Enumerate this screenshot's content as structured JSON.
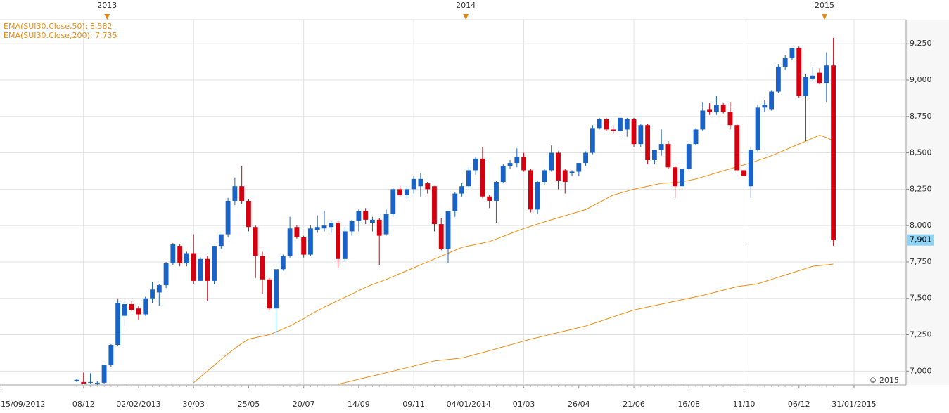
{
  "chart_data": {
    "type": "candlestick",
    "up_color": "#1a63c6",
    "down_color": "#d40010",
    "grid": true,
    "xlim": [
      "2012-09-14",
      "2015-03-25"
    ],
    "ylim": [
      6905,
      9415
    ],
    "yticks": [
      {
        "value": 7000,
        "label": "7,000"
      },
      {
        "value": 7250,
        "label": "7,250"
      },
      {
        "value": 7500,
        "label": "7,500"
      },
      {
        "value": 7750,
        "label": "7,750"
      },
      {
        "value": 8000,
        "label": "8,000"
      },
      {
        "value": 8250,
        "label": "8,250"
      },
      {
        "value": 8500,
        "label": "8,500"
      },
      {
        "value": 8750,
        "label": "8,750"
      },
      {
        "value": 9000,
        "label": "9,000"
      },
      {
        "value": 9250,
        "label": "9,250"
      }
    ],
    "xticks": [
      {
        "value": "2012-09-15",
        "label": "15/09/2012"
      },
      {
        "value": "2012-12-08",
        "label": "08/12"
      },
      {
        "value": "2013-02-02",
        "label": "02/02/2013"
      },
      {
        "value": "2013-03-30",
        "label": "30/03"
      },
      {
        "value": "2013-05-25",
        "label": "25/05"
      },
      {
        "value": "2013-07-20",
        "label": "20/07"
      },
      {
        "value": "2013-09-14",
        "label": "14/09"
      },
      {
        "value": "2013-11-09",
        "label": "09/11"
      },
      {
        "value": "2014-01-04",
        "label": "04/01/2014"
      },
      {
        "value": "2014-03-01",
        "label": "01/03"
      },
      {
        "value": "2014-04-26",
        "label": "26/04"
      },
      {
        "value": "2014-06-21",
        "label": "21/06"
      },
      {
        "value": "2014-08-16",
        "label": "16/08"
      },
      {
        "value": "2014-10-11",
        "label": "11/10"
      },
      {
        "value": "2014-12-06",
        "label": "06/12"
      },
      {
        "value": "2015-01-31",
        "label": "31/01/2015"
      }
    ],
    "year_ticks": [
      {
        "value": "2013-01-01",
        "label": "2013"
      },
      {
        "value": "2014-01-01",
        "label": "2014"
      },
      {
        "value": "2015-01-01",
        "label": "2015"
      }
    ],
    "last_value_label": "7,901",
    "copyright": "© 2015",
    "x": [
      "2012-12-01",
      "2012-12-08",
      "2012-12-15",
      "2012-12-22",
      "2012-12-29",
      "2013-01-05",
      "2013-01-12",
      "2013-01-19",
      "2013-01-26",
      "2013-02-02",
      "2013-02-09",
      "2013-02-16",
      "2013-02-23",
      "2013-03-02",
      "2013-03-09",
      "2013-03-16",
      "2013-03-23",
      "2013-03-30",
      "2013-04-06",
      "2013-04-13",
      "2013-04-20",
      "2013-04-27",
      "2013-05-04",
      "2013-05-11",
      "2013-05-18",
      "2013-05-25",
      "2013-06-01",
      "2013-06-08",
      "2013-06-15",
      "2013-06-22",
      "2013-06-29",
      "2013-07-06",
      "2013-07-13",
      "2013-07-20",
      "2013-07-27",
      "2013-08-03",
      "2013-08-10",
      "2013-08-17",
      "2013-08-24",
      "2013-08-31",
      "2013-09-07",
      "2013-09-14",
      "2013-09-21",
      "2013-09-28",
      "2013-10-05",
      "2013-10-12",
      "2013-10-19",
      "2013-10-26",
      "2013-11-02",
      "2013-11-09",
      "2013-11-16",
      "2013-11-23",
      "2013-11-30",
      "2013-12-07",
      "2013-12-14",
      "2013-12-21",
      "2013-12-28",
      "2014-01-04",
      "2014-01-11",
      "2014-01-18",
      "2014-01-25",
      "2014-02-01",
      "2014-02-08",
      "2014-02-15",
      "2014-02-22",
      "2014-03-01",
      "2014-03-08",
      "2014-03-15",
      "2014-03-22",
      "2014-03-29",
      "2014-04-05",
      "2014-04-12",
      "2014-04-19",
      "2014-04-26",
      "2014-05-03",
      "2014-05-10",
      "2014-05-17",
      "2014-05-24",
      "2014-05-31",
      "2014-06-07",
      "2014-06-14",
      "2014-06-21",
      "2014-06-28",
      "2014-07-05",
      "2014-07-12",
      "2014-07-19",
      "2014-07-26",
      "2014-08-02",
      "2014-08-09",
      "2014-08-16",
      "2014-08-23",
      "2014-08-30",
      "2014-09-06",
      "2014-09-13",
      "2014-09-20",
      "2014-09-27",
      "2014-10-04",
      "2014-10-11",
      "2014-10-18",
      "2014-10-25",
      "2014-11-01",
      "2014-11-08",
      "2014-11-15",
      "2014-11-22",
      "2014-11-29",
      "2014-12-06",
      "2014-12-13",
      "2014-12-20",
      "2014-12-27",
      "2015-01-03",
      "2015-01-10"
    ],
    "open": [
      6930,
      6925,
      6920,
      6915,
      6920,
      7040,
      7180,
      7380,
      7460,
      7430,
      7390,
      7500,
      7540,
      7590,
      7740,
      7860,
      7740,
      7810,
      7620,
      7770,
      7620,
      7860,
      7940,
      8170,
      8270,
      8170,
      7990,
      7790,
      7630,
      7430,
      7700,
      7790,
      7990,
      7920,
      7800,
      7970,
      7980,
      7990,
      8020,
      7770,
      7960,
      8030,
      8100,
      8020,
      8040,
      7940,
      8080,
      8250,
      8210,
      8250,
      8270,
      8290,
      8270,
      8010,
      7840,
      8100,
      8220,
      8270,
      8380,
      8460,
      8200,
      8170,
      8300,
      8410,
      8430,
      8470,
      8380,
      8110,
      8300,
      8380,
      8500,
      8380,
      8360,
      8370,
      8430,
      8500,
      8670,
      8730,
      8660,
      8650,
      8660,
      8730,
      8560,
      8690,
      8450,
      8520,
      8560,
      8400,
      8270,
      8390,
      8560,
      8660,
      8800,
      8780,
      8830,
      8780,
      8690,
      8380,
      8270,
      8520,
      8810,
      8800,
      8920,
      9090,
      9150,
      9220,
      8890,
      9010,
      9050,
      8980,
      9100
    ],
    "high": [
      6945,
      6990,
      6985,
      6930,
      7045,
      7185,
      7500,
      7490,
      7480,
      7450,
      7510,
      7610,
      7600,
      7750,
      7880,
      7870,
      7820,
      7940,
      7780,
      7790,
      7860,
      7940,
      8190,
      8330,
      8410,
      8180,
      8000,
      7820,
      7640,
      7700,
      7800,
      8060,
      8000,
      7930,
      8000,
      8070,
      8100,
      8030,
      8030,
      7990,
      8040,
      8110,
      8120,
      8060,
      8050,
      8110,
      8260,
      8270,
      8270,
      8340,
      8360,
      8300,
      8270,
      8050,
      8100,
      8230,
      8290,
      8400,
      8470,
      8540,
      8210,
      8310,
      8420,
      8450,
      8530,
      8500,
      8390,
      8310,
      8390,
      8550,
      8510,
      8390,
      8380,
      8430,
      8510,
      8690,
      8740,
      8740,
      8690,
      8760,
      8740,
      8740,
      8700,
      8700,
      8520,
      8660,
      8580,
      8410,
      8400,
      8570,
      8670,
      8850,
      8840,
      8890,
      8840,
      8850,
      8700,
      8400,
      8540,
      8830,
      8860,
      8930,
      9110,
      9170,
      9220,
      9230,
      9040,
      9090,
      9080,
      9190,
      9290
    ],
    "low": [
      6925,
      6910,
      6910,
      6905,
      6910,
      7030,
      7170,
      7300,
      7410,
      7350,
      7380,
      7470,
      7450,
      7570,
      7730,
      7720,
      7720,
      7600,
      7620,
      7480,
      7600,
      7840,
      7920,
      8140,
      8150,
      7960,
      7640,
      7530,
      7420,
      7250,
      7690,
      7780,
      7910,
      7780,
      7790,
      7950,
      7960,
      7950,
      7710,
      7760,
      7930,
      7960,
      8010,
      7960,
      7730,
      7930,
      8070,
      8200,
      8180,
      8220,
      8200,
      8220,
      7960,
      7830,
      7740,
      8060,
      8200,
      8260,
      8350,
      8190,
      8120,
      8020,
      8290,
      8390,
      8400,
      8370,
      8090,
      8080,
      8280,
      8370,
      8250,
      8220,
      8340,
      8340,
      8410,
      8490,
      8660,
      8650,
      8630,
      8620,
      8610,
      8540,
      8540,
      8420,
      8420,
      8480,
      8390,
      8190,
      8260,
      8380,
      8550,
      8650,
      8760,
      8760,
      8770,
      8660,
      8370,
      7870,
      8190,
      8510,
      8780,
      8790,
      8910,
      9070,
      9140,
      8880,
      8580,
      8990,
      8970,
      8850,
      7860
    ],
    "close": [
      6940,
      6915,
      6925,
      6920,
      7040,
      7180,
      7470,
      7460,
      7420,
      7390,
      7500,
      7560,
      7590,
      7740,
      7870,
      7740,
      7810,
      7620,
      7770,
      7620,
      7860,
      7940,
      8170,
      8270,
      8170,
      7990,
      7790,
      7630,
      7430,
      7700,
      7790,
      7980,
      7920,
      7800,
      7980,
      7990,
      8000,
      8020,
      7770,
      7960,
      8030,
      8100,
      8040,
      8040,
      7930,
      8080,
      8250,
      8210,
      8250,
      8320,
      8320,
      8250,
      8010,
      7840,
      8100,
      8220,
      8270,
      8380,
      8460,
      8200,
      8170,
      8300,
      8410,
      8430,
      8470,
      8380,
      8110,
      8300,
      8380,
      8500,
      8310,
      8300,
      8370,
      8430,
      8500,
      8670,
      8730,
      8660,
      8650,
      8740,
      8730,
      8560,
      8690,
      8450,
      8520,
      8560,
      8400,
      8270,
      8390,
      8560,
      8660,
      8790,
      8780,
      8830,
      8780,
      8690,
      8380,
      8340,
      8520,
      8810,
      8830,
      8920,
      9090,
      9150,
      9220,
      8890,
      9020,
      9030,
      8980,
      9100,
      7901
    ],
    "series": [
      {
        "name": "EMA(SUI30.Close,50): 8,582",
        "color": "#f08c10",
        "values": [
          null,
          null,
          null,
          null,
          null,
          null,
          null,
          null,
          null,
          null,
          null,
          null,
          null,
          null,
          null,
          null,
          null,
          6920,
          6960,
          7000,
          7040,
          7080,
          7120,
          7155,
          7190,
          7220,
          7230,
          7240,
          7250,
          7270,
          7290,
          7310,
          7335,
          7360,
          7390,
          7415,
          7440,
          7462,
          7485,
          7507,
          7530,
          7552,
          7575,
          7595,
          7612,
          7630,
          7650,
          7670,
          7690,
          7710,
          7730,
          7750,
          7770,
          7790,
          7810,
          7830,
          7850,
          7860,
          7870,
          7880,
          7890,
          7908,
          7926,
          7944,
          7962,
          7980,
          7995,
          8010,
          8025,
          8040,
          8054,
          8068,
          8082,
          8096,
          8110,
          8135,
          8160,
          8185,
          8210,
          8223,
          8237,
          8250,
          8260,
          8270,
          8280,
          8290,
          8293,
          8297,
          8300,
          8310,
          8320,
          8334,
          8348,
          8362,
          8376,
          8390,
          8403,
          8417,
          8430,
          8447,
          8463,
          8480,
          8500,
          8520,
          8540,
          8560,
          8580,
          8600,
          8620,
          8605,
          8582
        ]
      },
      {
        "name": "EMA(SUI30.Close,200): 7,735",
        "color": "#f08c10",
        "values": [
          null,
          null,
          null,
          null,
          null,
          null,
          null,
          null,
          null,
          null,
          null,
          null,
          null,
          null,
          null,
          null,
          null,
          null,
          null,
          null,
          null,
          null,
          null,
          null,
          null,
          null,
          null,
          null,
          null,
          null,
          null,
          null,
          null,
          null,
          null,
          null,
          null,
          null,
          6910,
          6921,
          6932,
          6944,
          6955,
          6966,
          6977,
          6989,
          7000,
          7012,
          7023,
          7035,
          7047,
          7058,
          7070,
          7075,
          7080,
          7085,
          7090,
          7102,
          7115,
          7127,
          7140,
          7153,
          7167,
          7180,
          7193,
          7207,
          7220,
          7231,
          7242,
          7254,
          7265,
          7276,
          7287,
          7299,
          7310,
          7326,
          7341,
          7357,
          7373,
          7389,
          7404,
          7420,
          7430,
          7440,
          7450,
          7460,
          7470,
          7480,
          7490,
          7500,
          7510,
          7520,
          7532,
          7544,
          7556,
          7568,
          7580,
          7587,
          7593,
          7600,
          7615,
          7630,
          7645,
          7660,
          7675,
          7690,
          7705,
          7720,
          7725,
          7730,
          7735
        ]
      }
    ]
  }
}
